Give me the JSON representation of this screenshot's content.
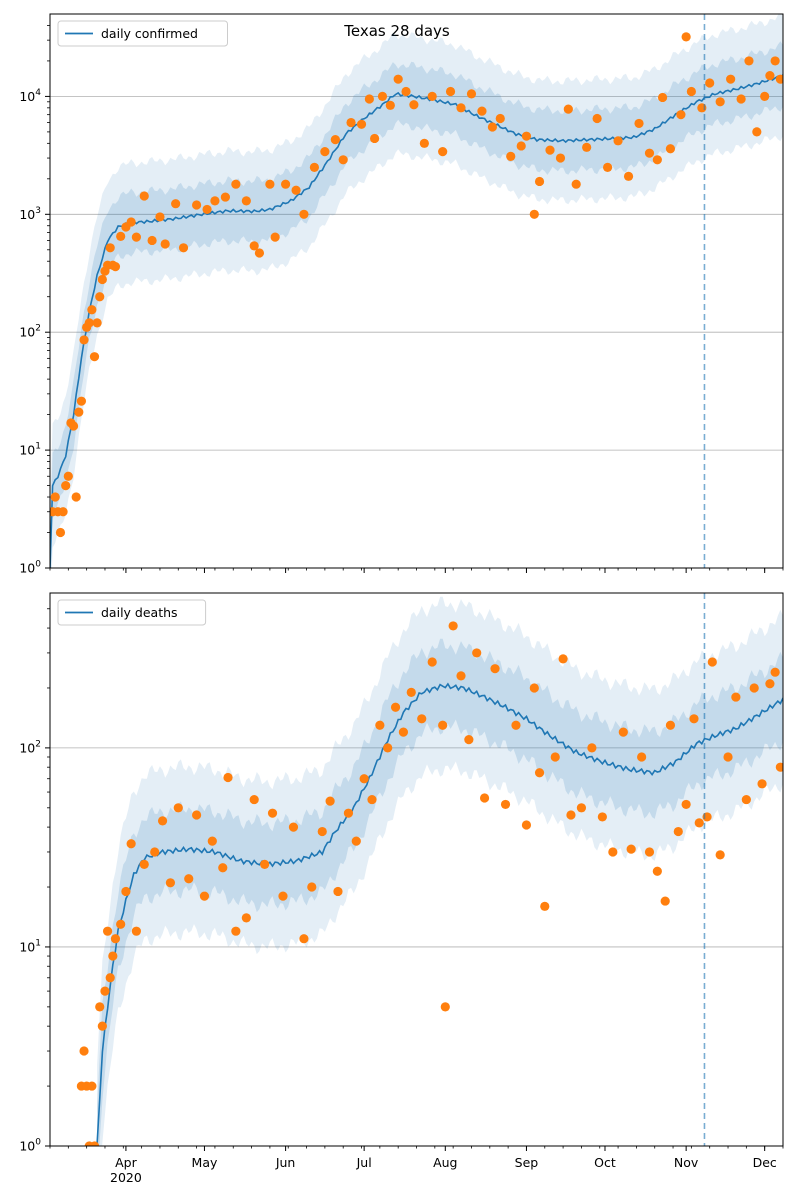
{
  "figure_title": "Texas 28 days",
  "colors": {
    "line": "#1f77b4",
    "points": "#ff7f0e",
    "band": "#1f77b4",
    "grid": "#b0b0b0",
    "vline": "#1f77b4"
  },
  "x_axis": {
    "start": "2020-03-03",
    "end": "2020-12-08",
    "ticks": [
      {
        "date": "2020-04-01",
        "label": "Apr",
        "sublabel": "2020"
      },
      {
        "date": "2020-05-01",
        "label": "May",
        "sublabel": ""
      },
      {
        "date": "2020-06-01",
        "label": "Jun",
        "sublabel": ""
      },
      {
        "date": "2020-07-01",
        "label": "Jul",
        "sublabel": ""
      },
      {
        "date": "2020-08-01",
        "label": "Aug",
        "sublabel": ""
      },
      {
        "date": "2020-09-01",
        "label": "Sep",
        "sublabel": ""
      },
      {
        "date": "2020-10-01",
        "label": "Oct",
        "sublabel": ""
      },
      {
        "date": "2020-11-01",
        "label": "Nov",
        "sublabel": ""
      },
      {
        "date": "2020-12-01",
        "label": "Dec",
        "sublabel": ""
      }
    ],
    "vline_date": "2020-11-08"
  },
  "chart_data": [
    {
      "type": "line",
      "legend": "daily confirmed",
      "legend_position": "top-left",
      "yscale": "log",
      "ylim": [
        1,
        50000
      ],
      "yticks": [
        1,
        10,
        100,
        1000,
        10000
      ],
      "yticklabels": [
        "10^0",
        "10^1",
        "10^2",
        "10^3",
        "10^4"
      ],
      "grid": "y",
      "line": [
        [
          "2020-03-03",
          1
        ],
        [
          "2020-03-04",
          5
        ],
        [
          "2020-03-06",
          6
        ],
        [
          "2020-03-09",
          9
        ],
        [
          "2020-03-12",
          20
        ],
        [
          "2020-03-15",
          60
        ],
        [
          "2020-03-18",
          150
        ],
        [
          "2020-03-21",
          300
        ],
        [
          "2020-03-25",
          600
        ],
        [
          "2020-03-29",
          780
        ],
        [
          "2020-04-03",
          850
        ],
        [
          "2020-04-10",
          870
        ],
        [
          "2020-04-20",
          920
        ],
        [
          "2020-04-30",
          1000
        ],
        [
          "2020-05-10",
          1070
        ],
        [
          "2020-05-20",
          1060
        ],
        [
          "2020-05-26",
          1100
        ],
        [
          "2020-06-03",
          1300
        ],
        [
          "2020-06-10",
          1700
        ],
        [
          "2020-06-17",
          2800
        ],
        [
          "2020-06-24",
          4800
        ],
        [
          "2020-07-01",
          6500
        ],
        [
          "2020-07-08",
          8500
        ],
        [
          "2020-07-13",
          10500
        ],
        [
          "2020-07-20",
          10000
        ],
        [
          "2020-07-28",
          9300
        ],
        [
          "2020-08-05",
          8500
        ],
        [
          "2020-08-12",
          7000
        ],
        [
          "2020-08-20",
          5800
        ],
        [
          "2020-08-28",
          4800
        ],
        [
          "2020-09-05",
          4300
        ],
        [
          "2020-09-15",
          4200
        ],
        [
          "2020-09-25",
          4300
        ],
        [
          "2020-10-05",
          4400
        ],
        [
          "2020-10-12",
          4500
        ],
        [
          "2020-10-20",
          5300
        ],
        [
          "2020-10-28",
          7000
        ],
        [
          "2020-11-05",
          9000
        ],
        [
          "2020-11-12",
          10500
        ],
        [
          "2020-11-20",
          11500
        ],
        [
          "2020-11-28",
          12800
        ],
        [
          "2020-12-08",
          15000
        ]
      ],
      "band_inner_factor": 1.8,
      "band_outer_factor": 3.2,
      "points": [
        [
          "2020-03-04",
          3
        ],
        [
          "2020-03-05",
          4
        ],
        [
          "2020-03-06",
          3
        ],
        [
          "2020-03-07",
          2
        ],
        [
          "2020-03-08",
          3
        ],
        [
          "2020-03-09",
          5
        ],
        [
          "2020-03-10",
          6
        ],
        [
          "2020-03-11",
          17
        ],
        [
          "2020-03-12",
          16
        ],
        [
          "2020-03-13",
          4
        ],
        [
          "2020-03-14",
          21
        ],
        [
          "2020-03-15",
          26
        ],
        [
          "2020-03-16",
          86
        ],
        [
          "2020-03-17",
          110
        ],
        [
          "2020-03-18",
          120
        ],
        [
          "2020-03-19",
          155
        ],
        [
          "2020-03-20",
          62
        ],
        [
          "2020-03-21",
          120
        ],
        [
          "2020-03-22",
          200
        ],
        [
          "2020-03-23",
          280
        ],
        [
          "2020-03-24",
          330
        ],
        [
          "2020-03-25",
          370
        ],
        [
          "2020-03-26",
          520
        ],
        [
          "2020-03-27",
          370
        ],
        [
          "2020-03-28",
          360
        ],
        [
          "2020-03-30",
          650
        ],
        [
          "2020-04-01",
          780
        ],
        [
          "2020-04-03",
          860
        ],
        [
          "2020-04-05",
          640
        ],
        [
          "2020-04-08",
          1430
        ],
        [
          "2020-04-11",
          600
        ],
        [
          "2020-04-14",
          950
        ],
        [
          "2020-04-16",
          560
        ],
        [
          "2020-04-20",
          1230
        ],
        [
          "2020-04-23",
          520
        ],
        [
          "2020-04-28",
          1200
        ],
        [
          "2020-05-02",
          1100
        ],
        [
          "2020-05-05",
          1300
        ],
        [
          "2020-05-09",
          1400
        ],
        [
          "2020-05-13",
          1800
        ],
        [
          "2020-05-17",
          1300
        ],
        [
          "2020-05-20",
          540
        ],
        [
          "2020-05-22",
          470
        ],
        [
          "2020-05-26",
          1800
        ],
        [
          "2020-05-28",
          640
        ],
        [
          "2020-06-01",
          1800
        ],
        [
          "2020-06-05",
          1600
        ],
        [
          "2020-06-08",
          1000
        ],
        [
          "2020-06-12",
          2500
        ],
        [
          "2020-06-16",
          3400
        ],
        [
          "2020-06-20",
          4300
        ],
        [
          "2020-06-23",
          2900
        ],
        [
          "2020-06-26",
          6000
        ],
        [
          "2020-06-30",
          5800
        ],
        [
          "2020-07-03",
          9500
        ],
        [
          "2020-07-05",
          4400
        ],
        [
          "2020-07-08",
          10000
        ],
        [
          "2020-07-11",
          8400
        ],
        [
          "2020-07-14",
          14000
        ],
        [
          "2020-07-17",
          11000
        ],
        [
          "2020-07-20",
          8500
        ],
        [
          "2020-07-24",
          4000
        ],
        [
          "2020-07-27",
          10000
        ],
        [
          "2020-07-31",
          3400
        ],
        [
          "2020-08-03",
          11000
        ],
        [
          "2020-08-07",
          8000
        ],
        [
          "2020-08-11",
          10500
        ],
        [
          "2020-08-15",
          7500
        ],
        [
          "2020-08-19",
          5500
        ],
        [
          "2020-08-22",
          6500
        ],
        [
          "2020-08-26",
          3100
        ],
        [
          "2020-08-30",
          3800
        ],
        [
          "2020-09-01",
          4600
        ],
        [
          "2020-09-04",
          1000
        ],
        [
          "2020-09-06",
          1900
        ],
        [
          "2020-09-10",
          3500
        ],
        [
          "2020-09-14",
          3000
        ],
        [
          "2020-09-17",
          7800
        ],
        [
          "2020-09-20",
          1800
        ],
        [
          "2020-09-24",
          3700
        ],
        [
          "2020-09-28",
          6500
        ],
        [
          "2020-10-02",
          2500
        ],
        [
          "2020-10-06",
          4200
        ],
        [
          "2020-10-10",
          2100
        ],
        [
          "2020-10-14",
          5900
        ],
        [
          "2020-10-18",
          3300
        ],
        [
          "2020-10-21",
          2900
        ],
        [
          "2020-10-23",
          9800
        ],
        [
          "2020-10-26",
          3600
        ],
        [
          "2020-10-30",
          7000
        ],
        [
          "2020-11-01",
          32000
        ],
        [
          "2020-11-03",
          11000
        ],
        [
          "2020-11-07",
          8000
        ],
        [
          "2020-11-10",
          13000
        ],
        [
          "2020-11-14",
          9000
        ],
        [
          "2020-11-18",
          14000
        ],
        [
          "2020-11-22",
          9500
        ],
        [
          "2020-11-25",
          20000
        ],
        [
          "2020-11-28",
          5000
        ],
        [
          "2020-12-01",
          10000
        ],
        [
          "2020-12-03",
          15000
        ],
        [
          "2020-12-05",
          20000
        ],
        [
          "2020-12-07",
          14000
        ]
      ]
    },
    {
      "type": "line",
      "legend": "daily deaths",
      "legend_position": "top-left",
      "yscale": "log",
      "ylim": [
        1,
        600
      ],
      "yticks": [
        1,
        10,
        100
      ],
      "yticklabels": [
        "10^0",
        "10^1",
        "10^2"
      ],
      "grid": "y",
      "line": [
        [
          "2020-03-21",
          1
        ],
        [
          "2020-03-23",
          3
        ],
        [
          "2020-03-25",
          5
        ],
        [
          "2020-03-27",
          8
        ],
        [
          "2020-03-29",
          12
        ],
        [
          "2020-04-01",
          17
        ],
        [
          "2020-04-04",
          23
        ],
        [
          "2020-04-08",
          28
        ],
        [
          "2020-04-15",
          30
        ],
        [
          "2020-04-25",
          31
        ],
        [
          "2020-05-05",
          30
        ],
        [
          "2020-05-15",
          27
        ],
        [
          "2020-05-25",
          26
        ],
        [
          "2020-06-05",
          27
        ],
        [
          "2020-06-15",
          30
        ],
        [
          "2020-06-20",
          38
        ],
        [
          "2020-06-27",
          50
        ],
        [
          "2020-07-03",
          70
        ],
        [
          "2020-07-10",
          110
        ],
        [
          "2020-07-16",
          150
        ],
        [
          "2020-07-23",
          190
        ],
        [
          "2020-07-31",
          205
        ],
        [
          "2020-08-08",
          200
        ],
        [
          "2020-08-16",
          180
        ],
        [
          "2020-08-24",
          160
        ],
        [
          "2020-09-01",
          140
        ],
        [
          "2020-09-10",
          115
        ],
        [
          "2020-09-20",
          95
        ],
        [
          "2020-09-30",
          85
        ],
        [
          "2020-10-10",
          78
        ],
        [
          "2020-10-20",
          75
        ],
        [
          "2020-10-28",
          85
        ],
        [
          "2020-11-05",
          105
        ],
        [
          "2020-11-12",
          115
        ],
        [
          "2020-11-20",
          125
        ],
        [
          "2020-11-28",
          145
        ],
        [
          "2020-12-08",
          175
        ]
      ],
      "band_inner_factor": 1.6,
      "band_outer_factor": 2.6,
      "points": [
        [
          "2020-03-15",
          2
        ],
        [
          "2020-03-16",
          3
        ],
        [
          "2020-03-17",
          2
        ],
        [
          "2020-03-18",
          1
        ],
        [
          "2020-03-19",
          2
        ],
        [
          "2020-03-20",
          1
        ],
        [
          "2020-03-22",
          5
        ],
        [
          "2020-03-23",
          4
        ],
        [
          "2020-03-24",
          6
        ],
        [
          "2020-03-25",
          12
        ],
        [
          "2020-03-26",
          7
        ],
        [
          "2020-03-27",
          9
        ],
        [
          "2020-03-28",
          11
        ],
        [
          "2020-03-30",
          13
        ],
        [
          "2020-04-01",
          19
        ],
        [
          "2020-04-03",
          33
        ],
        [
          "2020-04-05",
          12
        ],
        [
          "2020-04-08",
          26
        ],
        [
          "2020-04-12",
          30
        ],
        [
          "2020-04-15",
          43
        ],
        [
          "2020-04-18",
          21
        ],
        [
          "2020-04-21",
          50
        ],
        [
          "2020-04-25",
          22
        ],
        [
          "2020-04-28",
          46
        ],
        [
          "2020-05-01",
          18
        ],
        [
          "2020-05-04",
          34
        ],
        [
          "2020-05-08",
          25
        ],
        [
          "2020-05-10",
          71
        ],
        [
          "2020-05-13",
          12
        ],
        [
          "2020-05-17",
          14
        ],
        [
          "2020-05-20",
          55
        ],
        [
          "2020-05-24",
          26
        ],
        [
          "2020-05-27",
          47
        ],
        [
          "2020-05-31",
          18
        ],
        [
          "2020-06-04",
          40
        ],
        [
          "2020-06-08",
          11
        ],
        [
          "2020-06-11",
          20
        ],
        [
          "2020-06-15",
          38
        ],
        [
          "2020-06-18",
          54
        ],
        [
          "2020-06-21",
          19
        ],
        [
          "2020-06-25",
          47
        ],
        [
          "2020-06-28",
          34
        ],
        [
          "2020-07-01",
          70
        ],
        [
          "2020-07-04",
          55
        ],
        [
          "2020-07-07",
          130
        ],
        [
          "2020-07-10",
          100
        ],
        [
          "2020-07-13",
          160
        ],
        [
          "2020-07-16",
          120
        ],
        [
          "2020-07-19",
          190
        ],
        [
          "2020-07-23",
          140
        ],
        [
          "2020-07-27",
          270
        ],
        [
          "2020-07-31",
          130
        ],
        [
          "2020-08-01",
          5
        ],
        [
          "2020-08-04",
          410
        ],
        [
          "2020-08-07",
          230
        ],
        [
          "2020-08-10",
          110
        ],
        [
          "2020-08-13",
          300
        ],
        [
          "2020-08-16",
          56
        ],
        [
          "2020-08-20",
          250
        ],
        [
          "2020-08-24",
          52
        ],
        [
          "2020-08-28",
          130
        ],
        [
          "2020-09-01",
          41
        ],
        [
          "2020-09-04",
          200
        ],
        [
          "2020-09-06",
          75
        ],
        [
          "2020-09-08",
          16
        ],
        [
          "2020-09-12",
          90
        ],
        [
          "2020-09-15",
          280
        ],
        [
          "2020-09-18",
          46
        ],
        [
          "2020-09-22",
          50
        ],
        [
          "2020-09-26",
          100
        ],
        [
          "2020-09-30",
          45
        ],
        [
          "2020-10-04",
          30
        ],
        [
          "2020-10-08",
          120
        ],
        [
          "2020-10-11",
          31
        ],
        [
          "2020-10-15",
          90
        ],
        [
          "2020-10-18",
          30
        ],
        [
          "2020-10-21",
          24
        ],
        [
          "2020-10-24",
          17
        ],
        [
          "2020-10-26",
          130
        ],
        [
          "2020-10-29",
          38
        ],
        [
          "2020-11-01",
          52
        ],
        [
          "2020-11-04",
          140
        ],
        [
          "2020-11-06",
          42
        ],
        [
          "2020-11-09",
          45
        ],
        [
          "2020-11-11",
          270
        ],
        [
          "2020-11-14",
          29
        ],
        [
          "2020-11-17",
          90
        ],
        [
          "2020-11-20",
          180
        ],
        [
          "2020-11-24",
          55
        ],
        [
          "2020-11-27",
          200
        ],
        [
          "2020-11-30",
          66
        ],
        [
          "2020-12-03",
          210
        ],
        [
          "2020-12-05",
          240
        ],
        [
          "2020-12-07",
          80
        ]
      ]
    }
  ]
}
